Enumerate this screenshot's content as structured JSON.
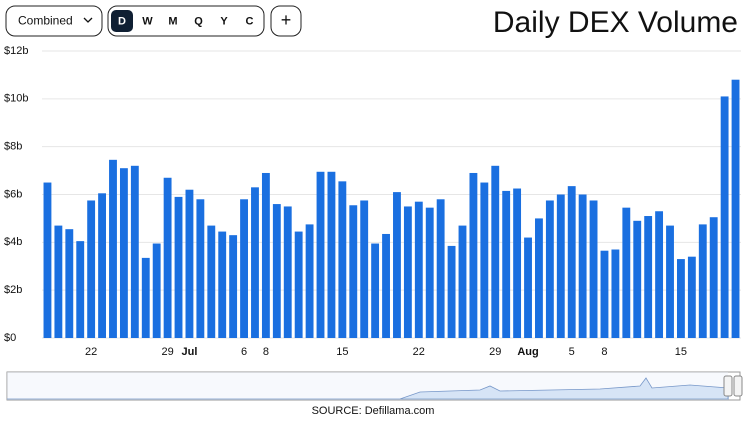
{
  "controls": {
    "dropdown": "Combined",
    "periods": [
      "D",
      "W",
      "M",
      "Q",
      "Y",
      "C"
    ],
    "add": "+"
  },
  "chart_data": {
    "type": "bar",
    "title": "Daily DEX Volume",
    "source": "SOURCE: Defillama.com",
    "color": "#1a6fe0",
    "grid": true,
    "categories": [
      null,
      null,
      null,
      null,
      "22",
      null,
      null,
      null,
      null,
      null,
      null,
      "29",
      null,
      "Jul",
      null,
      null,
      null,
      null,
      "6",
      null,
      "8",
      null,
      null,
      null,
      null,
      null,
      null,
      "15",
      null,
      null,
      null,
      null,
      null,
      null,
      "22",
      null,
      null,
      null,
      null,
      null,
      null,
      "29",
      null,
      null,
      "Aug",
      null,
      null,
      null,
      "5",
      null,
      null,
      "8",
      null,
      null,
      null,
      null,
      null,
      null,
      "15",
      null,
      null,
      null,
      null,
      null
    ],
    "values": [
      6.5,
      4.7,
      4.55,
      4.05,
      5.75,
      6.05,
      7.45,
      7.1,
      7.2,
      3.35,
      3.95,
      6.7,
      5.9,
      6.2,
      5.8,
      4.7,
      4.45,
      4.3,
      5.8,
      6.3,
      6.9,
      5.6,
      5.5,
      4.45,
      4.75,
      6.95,
      6.95,
      6.55,
      5.55,
      5.75,
      3.95,
      4.35,
      6.1,
      5.5,
      5.7,
      5.45,
      5.8,
      3.85,
      4.7,
      6.9,
      6.5,
      7.2,
      6.15,
      6.25,
      4.2,
      5.0,
      5.75,
      6.0,
      6.35,
      6.0,
      5.75,
      3.65,
      3.7,
      5.45,
      4.9,
      5.1,
      5.3,
      4.7,
      3.3,
      3.4,
      4.75,
      5.05,
      10.1,
      10.8
    ],
    "ylim": [
      0,
      12
    ],
    "yticks": [
      {
        "value": 0,
        "label": "$0"
      },
      {
        "value": 2,
        "label": "$2b"
      },
      {
        "value": 4,
        "label": "$4b"
      },
      {
        "value": 6,
        "label": "$6b"
      },
      {
        "value": 8,
        "label": "$8b"
      },
      {
        "value": 10,
        "label": "$10b"
      },
      {
        "value": 12,
        "label": "$12b"
      }
    ]
  }
}
